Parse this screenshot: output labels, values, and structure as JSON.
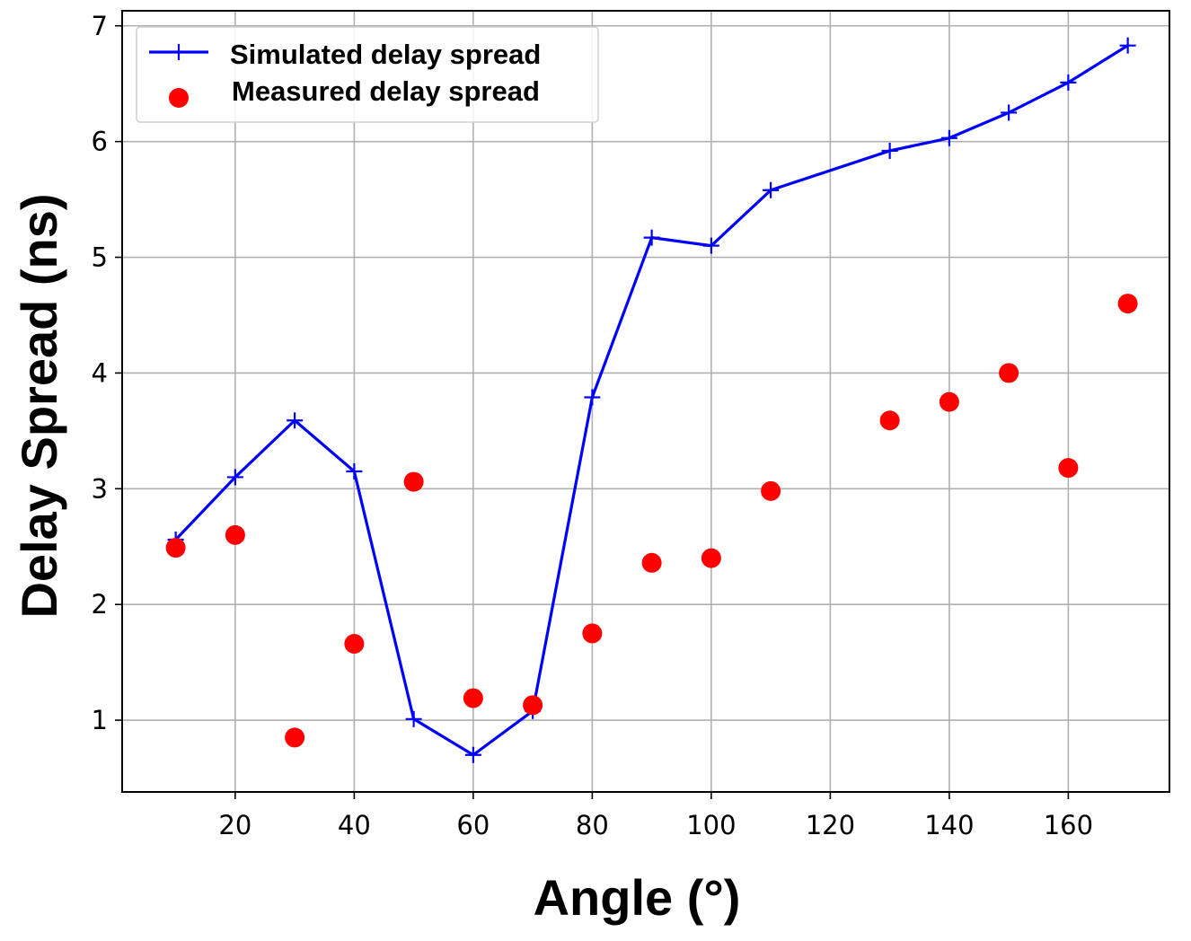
{
  "chart_data": {
    "type": "line",
    "title": "",
    "xlabel": "Angle (°)",
    "ylabel": "Delay Spread (ns)",
    "xlim": [
      1,
      177
    ],
    "ylim": [
      0.38,
      7.13
    ],
    "xticks": [
      20,
      40,
      60,
      80,
      100,
      120,
      140,
      160
    ],
    "yticks": [
      1,
      2,
      3,
      4,
      5,
      6,
      7
    ],
    "grid": true,
    "legend_position": "top-left",
    "series": [
      {
        "name": "Simulated delay spread",
        "kind": "line",
        "marker": "plus",
        "color": "#0000ff",
        "x": [
          10,
          20,
          30,
          40,
          50,
          60,
          70,
          80,
          90,
          100,
          110,
          130,
          140,
          150,
          160,
          170
        ],
        "y": [
          2.56,
          3.1,
          3.59,
          3.15,
          1.01,
          0.7,
          1.08,
          3.79,
          5.17,
          5.1,
          5.58,
          5.92,
          6.03,
          6.25,
          6.51,
          6.83
        ]
      },
      {
        "name": "Measured delay spread",
        "kind": "scatter",
        "marker": "circle",
        "color": "#ff0000",
        "x": [
          10,
          20,
          30,
          40,
          50,
          60,
          70,
          80,
          90,
          100,
          110,
          130,
          140,
          150,
          160,
          170
        ],
        "y": [
          2.49,
          2.6,
          0.85,
          1.66,
          3.06,
          1.19,
          1.13,
          1.75,
          2.36,
          2.4,
          2.98,
          3.59,
          3.75,
          4.0,
          3.18,
          4.6
        ]
      }
    ]
  }
}
